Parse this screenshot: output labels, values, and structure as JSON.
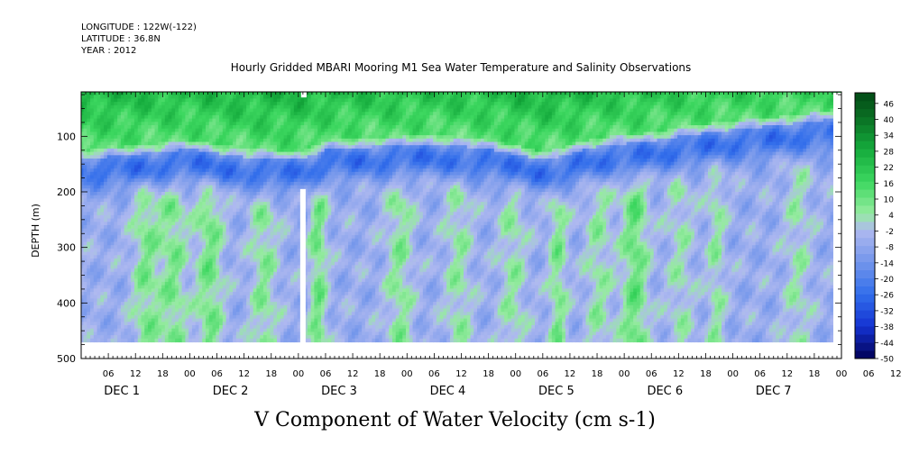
{
  "header": {
    "longitude": "LONGITUDE : 122W(-122)",
    "latitude": "LATITUDE : 36.8N",
    "year": "YEAR : 2012"
  },
  "title": "Hourly Gridded MBARI Mooring M1 Sea Water Temperature and Salinity Observations",
  "caption": "V Component of Water Velocity (cm s-1)",
  "chart_data": {
    "type": "heatmap",
    "title": "Hourly Gridded MBARI Mooring M1 Sea Water Temperature and Salinity Observations",
    "xlabel": "",
    "ylabel": "DEPTH (m)",
    "ylim": [
      500,
      20
    ],
    "yticks": [
      100,
      200,
      300,
      400,
      500
    ],
    "xlim_hours": [
      0,
      168
    ],
    "x_hour_labels": [
      "06",
      "12",
      "18",
      "00",
      "06",
      "12",
      "18",
      "00",
      "06",
      "12",
      "18",
      "00",
      "06",
      "12",
      "18",
      "00",
      "06",
      "12",
      "18",
      "00",
      "06",
      "12",
      "18",
      "00",
      "06",
      "12",
      "18",
      "00",
      "06",
      "12",
      "18",
      "00"
    ],
    "x_day_labels": [
      "DEC  1",
      "DEC  2",
      "DEC  3",
      "DEC  4",
      "DEC  5",
      "DEC  6",
      "DEC  7"
    ],
    "colorbar": {
      "labels": [
        "46",
        "40",
        "34",
        "28",
        "22",
        "16",
        "10",
        "4",
        "-2",
        "-8",
        "-14",
        "-20",
        "-26",
        "-32",
        "-38",
        "-44",
        "-50"
      ],
      "min": -50,
      "max": 50,
      "step": 3
    },
    "features": {
      "blue_layer_depth_m": [
        [
          -2,
          150
        ],
        [
          10,
          140
        ],
        [
          24,
          130
        ],
        [
          36,
          145
        ],
        [
          48,
          150
        ],
        [
          54,
          130
        ],
        [
          66,
          125
        ],
        [
          78,
          120
        ],
        [
          90,
          130
        ],
        [
          102,
          150
        ],
        [
          114,
          125
        ],
        [
          126,
          115
        ],
        [
          138,
          100
        ],
        [
          150,
          90
        ],
        [
          162,
          80
        ],
        [
          169,
          70
        ]
      ],
      "green_columns": [
        [
          14,
          3,
          0.8
        ],
        [
          20,
          3,
          0.8
        ],
        [
          28,
          3,
          0.9
        ],
        [
          40,
          3,
          0.7
        ],
        [
          52,
          2,
          0.9
        ],
        [
          70,
          3,
          0.7
        ],
        [
          83,
          3,
          0.6
        ],
        [
          95,
          3,
          0.6
        ],
        [
          105,
          2,
          0.8
        ],
        [
          114,
          3,
          0.6
        ],
        [
          122,
          3,
          1.0
        ],
        [
          132,
          3,
          0.5
        ],
        [
          140,
          2,
          0.6
        ],
        [
          158,
          3,
          0.5
        ]
      ]
    }
  }
}
